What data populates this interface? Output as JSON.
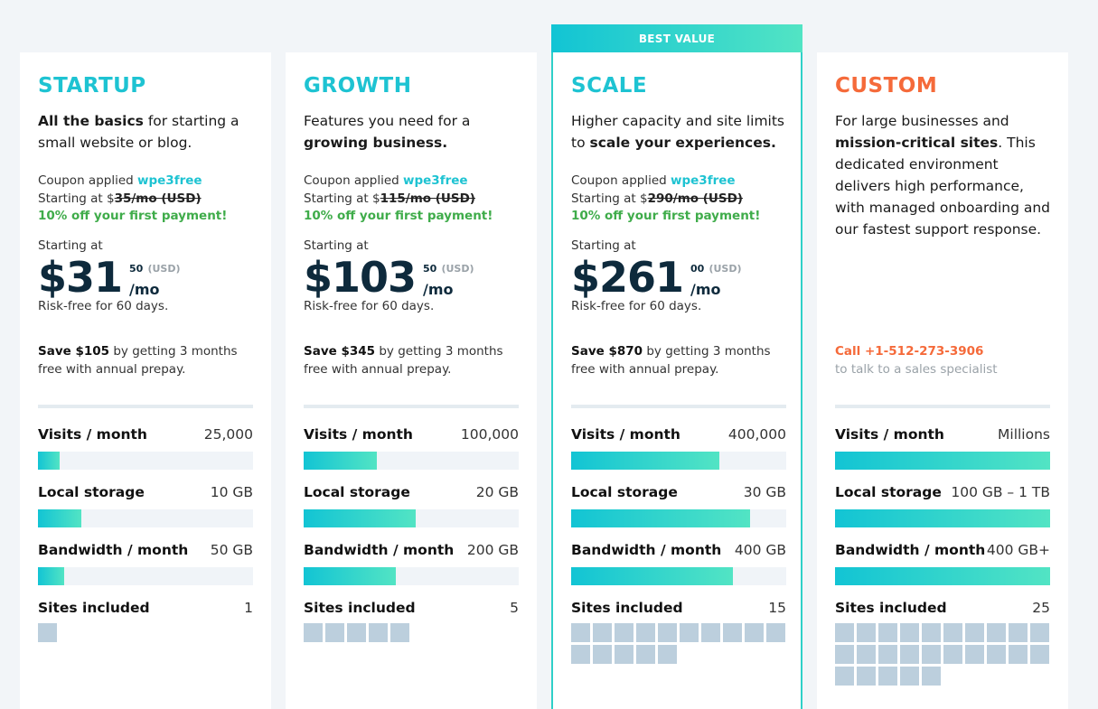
{
  "ribbon": "BEST VALUE",
  "labels": {
    "coupon_applied": "Coupon applied",
    "starting_at_prefix": "Starting at $",
    "starting_at": "Starting at",
    "usd": "(USD)",
    "per_mo": "/mo",
    "risk_free": "Risk-free for 60 days.",
    "save_suffix": " by getting 3 months free with annual prepay.",
    "visits": "Visits / month",
    "storage": "Local storage",
    "bandwidth": "Bandwidth / month",
    "sites": "Sites included"
  },
  "colors": {
    "accent": "#1ec3d2",
    "orange": "#f56a3a",
    "green": "#3fac4a",
    "dark": "#0e2a3c"
  },
  "plans": [
    {
      "name": "STARTUP",
      "desc_bold_1": "All the basics",
      "desc_text_1": " for starting a small website or blog.",
      "coupon_code": "wpe3free",
      "original_price": "35/mo (USD)",
      "discount": "10% off your first payment!",
      "price_dollars": "$31",
      "price_cents": "50",
      "save_amount": "Save $105",
      "visits": "25,000",
      "visits_level": 0.1,
      "storage": "10 GB",
      "storage_level": 0.2,
      "bandwidth": "50 GB",
      "bandwidth_level": 0.12,
      "sites": "1",
      "sites_count": 1
    },
    {
      "name": "GROWTH",
      "desc_text_1": "Features you need for a ",
      "desc_bold_1": "growing business.",
      "coupon_code": "wpe3free",
      "original_price": "115/mo (USD)",
      "discount": "10% off your first payment!",
      "price_dollars": "$103",
      "price_cents": "50",
      "save_amount": "Save $345",
      "visits": "100,000",
      "visits_level": 0.34,
      "storage": "20 GB",
      "storage_level": 0.52,
      "bandwidth": "200 GB",
      "bandwidth_level": 0.43,
      "sites": "5",
      "sites_count": 5
    },
    {
      "name": "SCALE",
      "desc_text_1": "Higher capacity and site limits to ",
      "desc_bold_1": "scale your experiences.",
      "coupon_code": "wpe3free",
      "original_price": "290/mo (USD)",
      "discount": "10% off your first payment!",
      "price_dollars": "$261",
      "price_cents": "00",
      "save_amount": "Save $870",
      "visits": "400,000",
      "visits_level": 0.69,
      "storage": "30 GB",
      "storage_level": 0.83,
      "bandwidth": "400 GB",
      "bandwidth_level": 0.75,
      "sites": "15",
      "sites_count": 15
    },
    {
      "name": "CUSTOM",
      "desc_text_1": "For large businesses and ",
      "desc_bold_1": "mission-critical sites",
      "desc_text_2": ". This dedicated environment delivers high performance, with managed onboarding and our fastest support response.",
      "call": "Call +1-512-273-3906",
      "call_sub": "to talk to a sales specialist",
      "visits": "Millions",
      "visits_level": 1.0,
      "storage": "100 GB – 1 TB",
      "storage_level": 1.0,
      "bandwidth": "400 GB+",
      "bandwidth_level": 1.0,
      "sites": "25",
      "sites_count": 25
    }
  ]
}
